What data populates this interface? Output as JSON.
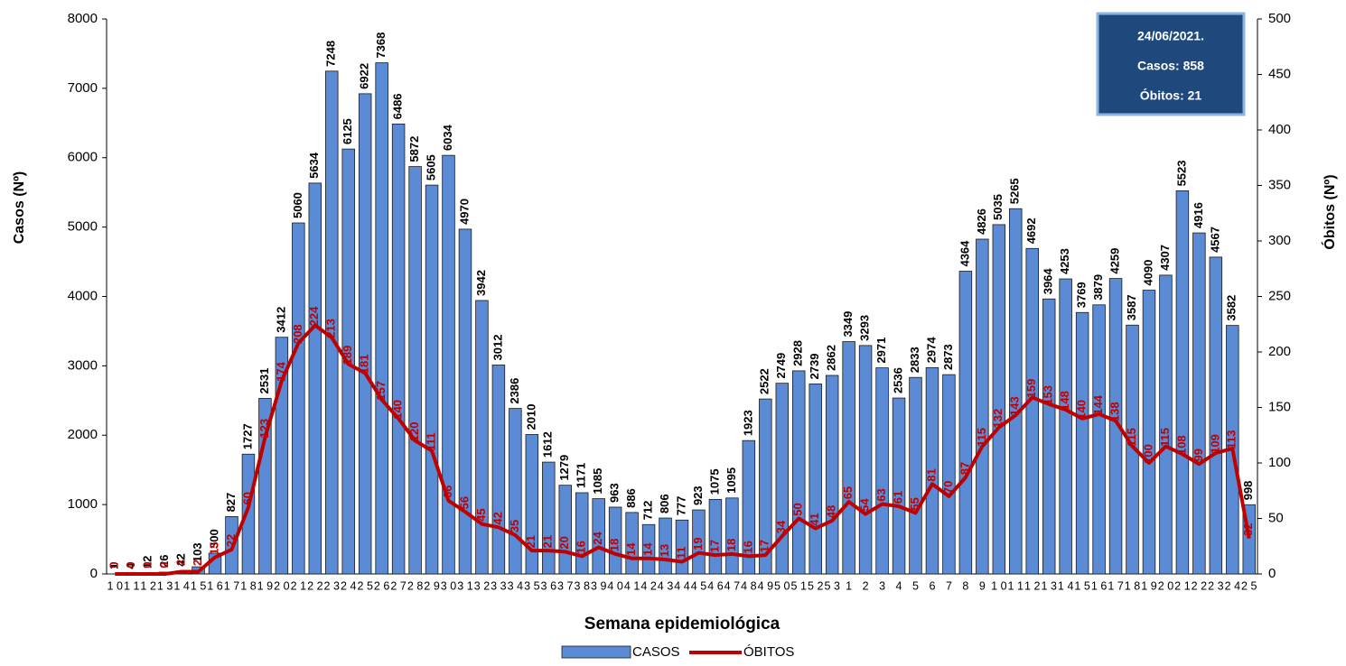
{
  "chart_data": {
    "type": "bar_line",
    "xlabel": "Semana epidemiológica",
    "ylabel": "Casos (Nº)",
    "y2label": "Óbitos (Nº)",
    "annotations": [
      "24/06/2021.",
      "Casos: 858",
      "Óbitos: 21"
    ],
    "categories": [
      "10",
      "11",
      "12",
      "13",
      "14",
      "15",
      "16",
      "17",
      "18",
      "19",
      "20",
      "21",
      "22",
      "23",
      "24",
      "25",
      "26",
      "27",
      "28",
      "29",
      "30",
      "31",
      "32",
      "33",
      "34",
      "35",
      "36",
      "37",
      "38",
      "39",
      "40",
      "41",
      "42",
      "43",
      "44",
      "45",
      "46",
      "47",
      "48",
      "49",
      "50",
      "51",
      "52",
      "53",
      "1",
      "2",
      "3",
      "4",
      "5",
      "6",
      "7",
      "8",
      "9",
      "10",
      "11",
      "12",
      "13",
      "14",
      "15",
      "16",
      "17",
      "18",
      "19",
      "20",
      "21",
      "22",
      "23",
      "24",
      "25"
    ],
    "series": [
      {
        "name": "CASOS",
        "type": "bar",
        "color": "#5a8bd4",
        "values": [
          1,
          4,
          12,
          26,
          42,
          103,
          300,
          827,
          1727,
          2531,
          3412,
          5060,
          5634,
          7248,
          6125,
          6922,
          7368,
          6486,
          5872,
          5605,
          6034,
          4970,
          3942,
          3012,
          2386,
          2010,
          1612,
          1279,
          1171,
          1085,
          963,
          886,
          712,
          806,
          777,
          923,
          1075,
          1095,
          1923,
          2522,
          2749,
          2928,
          2739,
          2862,
          3349,
          3293,
          2971,
          2536,
          2833,
          2974,
          2873,
          4364,
          4826,
          5035,
          5265,
          4692,
          3964,
          4253,
          3769,
          3879,
          4259,
          3587,
          4090,
          4307,
          5523,
          4916,
          4567,
          3582,
          998
        ]
      },
      {
        "name": "ÓBITOS",
        "type": "line",
        "axis": "y2",
        "color": "#c00000",
        "values": [
          0,
          0,
          0,
          0,
          2,
          2,
          15,
          22,
          60,
          123,
          174,
          208,
          224,
          213,
          189,
          181,
          157,
          140,
          120,
          111,
          66,
          56,
          45,
          42,
          35,
          21,
          21,
          20,
          16,
          24,
          18,
          14,
          14,
          13,
          11,
          19,
          17,
          18,
          16,
          17,
          34,
          50,
          41,
          48,
          65,
          54,
          63,
          61,
          55,
          81,
          70,
          87,
          115,
          132,
          143,
          159,
          153,
          148,
          140,
          144,
          138,
          115,
          100,
          115,
          108,
          99,
          109,
          113,
          32
        ]
      }
    ],
    "ylim": [
      0,
      8000
    ],
    "yticks": [
      0,
      1000,
      2000,
      3000,
      4000,
      5000,
      6000,
      7000,
      8000
    ],
    "y2lim": [
      0,
      500
    ],
    "y2ticks": [
      0,
      50,
      100,
      150,
      200,
      250,
      300,
      350,
      400,
      450,
      500
    ]
  }
}
